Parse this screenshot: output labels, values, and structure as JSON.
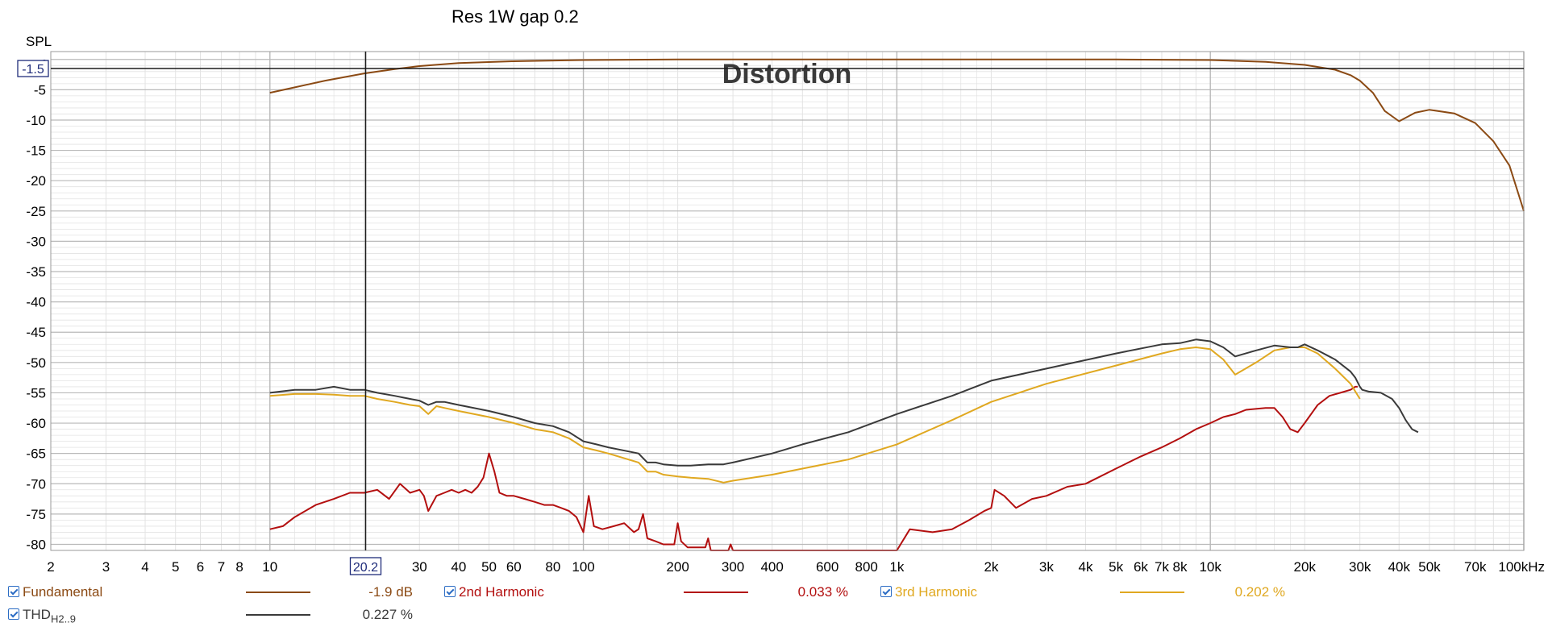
{
  "title": "Res 1W gap 0.2",
  "ylabel": "SPL",
  "watermark": "Distortion",
  "cursor": {
    "x_label": "20.2",
    "y_label": "-1.5",
    "x_value": 20.2,
    "y_value": -1.5
  },
  "colors": {
    "background": "#ffffff",
    "grid_major": "#b9b9b9",
    "grid_minor": "#e3e3e3",
    "fundamental": "#8b4a14",
    "h2": "#b30f0f",
    "h3": "#e0a820",
    "thd": "#3a3a3a",
    "cursor": "#1a1a1a",
    "cursor_box": "#1f2c7a"
  },
  "chart_data": {
    "type": "line",
    "xscale": "log",
    "xlim": [
      2,
      100000
    ],
    "ylim": [
      -81,
      0.5
    ],
    "grid": true,
    "xticks": [
      {
        "v": 2,
        "label": "2"
      },
      {
        "v": 3,
        "label": "3"
      },
      {
        "v": 4,
        "label": "4"
      },
      {
        "v": 5,
        "label": "5"
      },
      {
        "v": 6,
        "label": "6"
      },
      {
        "v": 7,
        "label": "7"
      },
      {
        "v": 8,
        "label": "8"
      },
      {
        "v": 10,
        "label": "10"
      },
      {
        "v": 30,
        "label": "30"
      },
      {
        "v": 40,
        "label": "40"
      },
      {
        "v": 50,
        "label": "50"
      },
      {
        "v": 60,
        "label": "60"
      },
      {
        "v": 80,
        "label": "80"
      },
      {
        "v": 100,
        "label": "100"
      },
      {
        "v": 200,
        "label": "200"
      },
      {
        "v": 300,
        "label": "300"
      },
      {
        "v": 400,
        "label": "400"
      },
      {
        "v": 600,
        "label": "600"
      },
      {
        "v": 800,
        "label": "800"
      },
      {
        "v": 1000,
        "label": "1k"
      },
      {
        "v": 2000,
        "label": "2k"
      },
      {
        "v": 3000,
        "label": "3k"
      },
      {
        "v": 4000,
        "label": "4k"
      },
      {
        "v": 5000,
        "label": "5k"
      },
      {
        "v": 6000,
        "label": "6k"
      },
      {
        "v": 7000,
        "label": "7k"
      },
      {
        "v": 8000,
        "label": "8k"
      },
      {
        "v": 10000,
        "label": "10k"
      },
      {
        "v": 20000,
        "label": "20k"
      },
      {
        "v": 30000,
        "label": "30k"
      },
      {
        "v": 40000,
        "label": "40k"
      },
      {
        "v": 50000,
        "label": "50k"
      },
      {
        "v": 70000,
        "label": "70k"
      },
      {
        "v": 100000,
        "label": "100kHz"
      }
    ],
    "yticks": [
      -5,
      -10,
      -15,
      -20,
      -25,
      -30,
      -35,
      -40,
      -45,
      -50,
      -55,
      -60,
      -65,
      -70,
      -75,
      -80
    ],
    "series": [
      {
        "name": "Fundamental",
        "color_key": "fundamental",
        "x": [
          10,
          12,
          15,
          20,
          25,
          30,
          40,
          60,
          100,
          200,
          500,
          1000,
          2000,
          5000,
          10000,
          15000,
          20000,
          25000,
          28000,
          30000,
          33000,
          36000,
          40000,
          45000,
          50000,
          60000,
          70000,
          80000,
          90000,
          100000
        ],
        "y": [
          -5.5,
          -4.6,
          -3.5,
          -2.3,
          -1.6,
          -1.1,
          -0.6,
          -0.3,
          -0.1,
          0,
          0,
          0,
          0,
          0,
          -0.1,
          -0.4,
          -0.9,
          -1.7,
          -2.6,
          -3.5,
          -5.5,
          -8.5,
          -10.2,
          -8.8,
          -8.3,
          -8.9,
          -10.5,
          -13.5,
          -17.5,
          -25
        ]
      },
      {
        "name": "2nd Harmonic",
        "color_key": "h2",
        "x": [
          10,
          11,
          12,
          14,
          16,
          18,
          20,
          22,
          24,
          26,
          28,
          30,
          31,
          32,
          34,
          36,
          38,
          40,
          42,
          44,
          46,
          48,
          50,
          52,
          54,
          57,
          60,
          65,
          70,
          75,
          80,
          85,
          90,
          95,
          100,
          104,
          108,
          115,
          125,
          135,
          145,
          150,
          155,
          160,
          170,
          180,
          195,
          200,
          205,
          215,
          230,
          245,
          250,
          255,
          270,
          290,
          295,
          300,
          305,
          330,
          1000,
          1100,
          1300,
          1500,
          1700,
          1900,
          2000,
          2050,
          2200,
          2400,
          2700,
          3000,
          3500,
          4000,
          5000,
          6000,
          7000,
          8000,
          9000,
          10000,
          11000,
          12000,
          13000,
          15000,
          16000,
          17000,
          18000,
          19000,
          20000,
          22000,
          24000,
          26000,
          28000,
          29000,
          29500
        ],
        "y": [
          -77.5,
          -77,
          -75.5,
          -73.5,
          -72.5,
          -71.5,
          -71.5,
          -71,
          -72.5,
          -70,
          -71.5,
          -71,
          -72,
          -74.5,
          -72,
          -71.5,
          -71,
          -71.5,
          -71,
          -71.5,
          -70.5,
          -69,
          -65,
          -68,
          -71.5,
          -72,
          -72,
          -72.5,
          -73,
          -73.5,
          -73.5,
          -74,
          -74.5,
          -75.5,
          -78,
          -72,
          -77,
          -77.5,
          -77,
          -76.5,
          -78,
          -77.5,
          -75,
          -79,
          -79.5,
          -80,
          -80,
          -76.5,
          -79.5,
          -80.5,
          -80.5,
          -80.5,
          -79,
          -81,
          -81,
          -81,
          -80,
          -81,
          -81,
          -81,
          -81,
          -77.5,
          -78,
          -77.5,
          -76,
          -74.5,
          -74,
          -71,
          -72,
          -74,
          -72.5,
          -72,
          -70.5,
          -70,
          -67.5,
          -65.5,
          -64,
          -62.5,
          -61,
          -60,
          -59,
          -58.5,
          -57.8,
          -57.5,
          -57.5,
          -59,
          -61,
          -61.5,
          -60,
          -57,
          -55.5,
          -55,
          -54.5,
          -54,
          -54
        ]
      },
      {
        "name": "3rd Harmonic",
        "color_key": "h3",
        "x": [
          10,
          12,
          14,
          16,
          18,
          20,
          22,
          25,
          28,
          30,
          32,
          34,
          36,
          40,
          50,
          60,
          70,
          80,
          90,
          100,
          110,
          120,
          150,
          160,
          170,
          180,
          200,
          220,
          250,
          280,
          300,
          400,
          500,
          700,
          1000,
          1500,
          2000,
          3000,
          5000,
          7000,
          8000,
          9000,
          10000,
          11000,
          12000,
          14000,
          16000,
          18000,
          20000,
          22000,
          25000,
          28000,
          30000
        ],
        "y": [
          -55.5,
          -55.2,
          -55.2,
          -55.3,
          -55.5,
          -55.5,
          -56,
          -56.5,
          -57,
          -57.2,
          -58.5,
          -57.2,
          -57.5,
          -58,
          -59,
          -60,
          -61,
          -61.5,
          -62.5,
          -64,
          -64.5,
          -65,
          -66.5,
          -68,
          -68,
          -68.5,
          -68.8,
          -69,
          -69.2,
          -69.8,
          -69.5,
          -68.5,
          -67.5,
          -66,
          -63.5,
          -59.5,
          -56.5,
          -53.5,
          -50.5,
          -48.5,
          -47.8,
          -47.5,
          -47.8,
          -49.5,
          -52,
          -50,
          -48,
          -47.5,
          -47.5,
          -48.5,
          -51,
          -53.5,
          -56
        ]
      },
      {
        "name": "THD",
        "color_key": "thd",
        "x": [
          10,
          12,
          14,
          16,
          18,
          20,
          22,
          25,
          28,
          30,
          32,
          34,
          36,
          40,
          50,
          60,
          70,
          80,
          90,
          100,
          110,
          120,
          150,
          160,
          170,
          180,
          200,
          220,
          250,
          280,
          300,
          400,
          500,
          700,
          1000,
          1500,
          2000,
          3000,
          5000,
          7000,
          8000,
          9000,
          10000,
          11000,
          12000,
          14000,
          16000,
          18000,
          19000,
          20000,
          22000,
          25000,
          28000,
          29000,
          30000,
          30500,
          32000,
          35000,
          38000,
          40000,
          42000,
          44000,
          46000
        ],
        "y": [
          -55,
          -54.5,
          -54.5,
          -54,
          -54.5,
          -54.5,
          -55,
          -55.5,
          -56,
          -56.3,
          -57,
          -56.5,
          -56.5,
          -57,
          -58,
          -59,
          -60,
          -60.5,
          -61.5,
          -63,
          -63.5,
          -64,
          -65,
          -66.5,
          -66.5,
          -66.8,
          -67,
          -67,
          -66.8,
          -66.8,
          -66.5,
          -65,
          -63.5,
          -61.5,
          -58.5,
          -55.5,
          -53,
          -51,
          -48.5,
          -47,
          -46.8,
          -46.2,
          -46.5,
          -47.5,
          -49,
          -48,
          -47.2,
          -47.5,
          -47.5,
          -47,
          -48,
          -49.5,
          -51.5,
          -52.5,
          -54,
          -54.5,
          -54.8,
          -55,
          -56,
          -57.5,
          -59.5,
          -61,
          -61.5
        ]
      }
    ]
  },
  "legend": {
    "fundamental": {
      "name": "Fundamental",
      "value": "-1.9 dB"
    },
    "h2": {
      "name": "2nd Harmonic",
      "value": "0.033 %"
    },
    "h3": {
      "name": "3rd Harmonic",
      "value": "0.202 %"
    },
    "thd": {
      "name": "THD",
      "sub": "H2..9",
      "value": "0.227 %"
    }
  }
}
